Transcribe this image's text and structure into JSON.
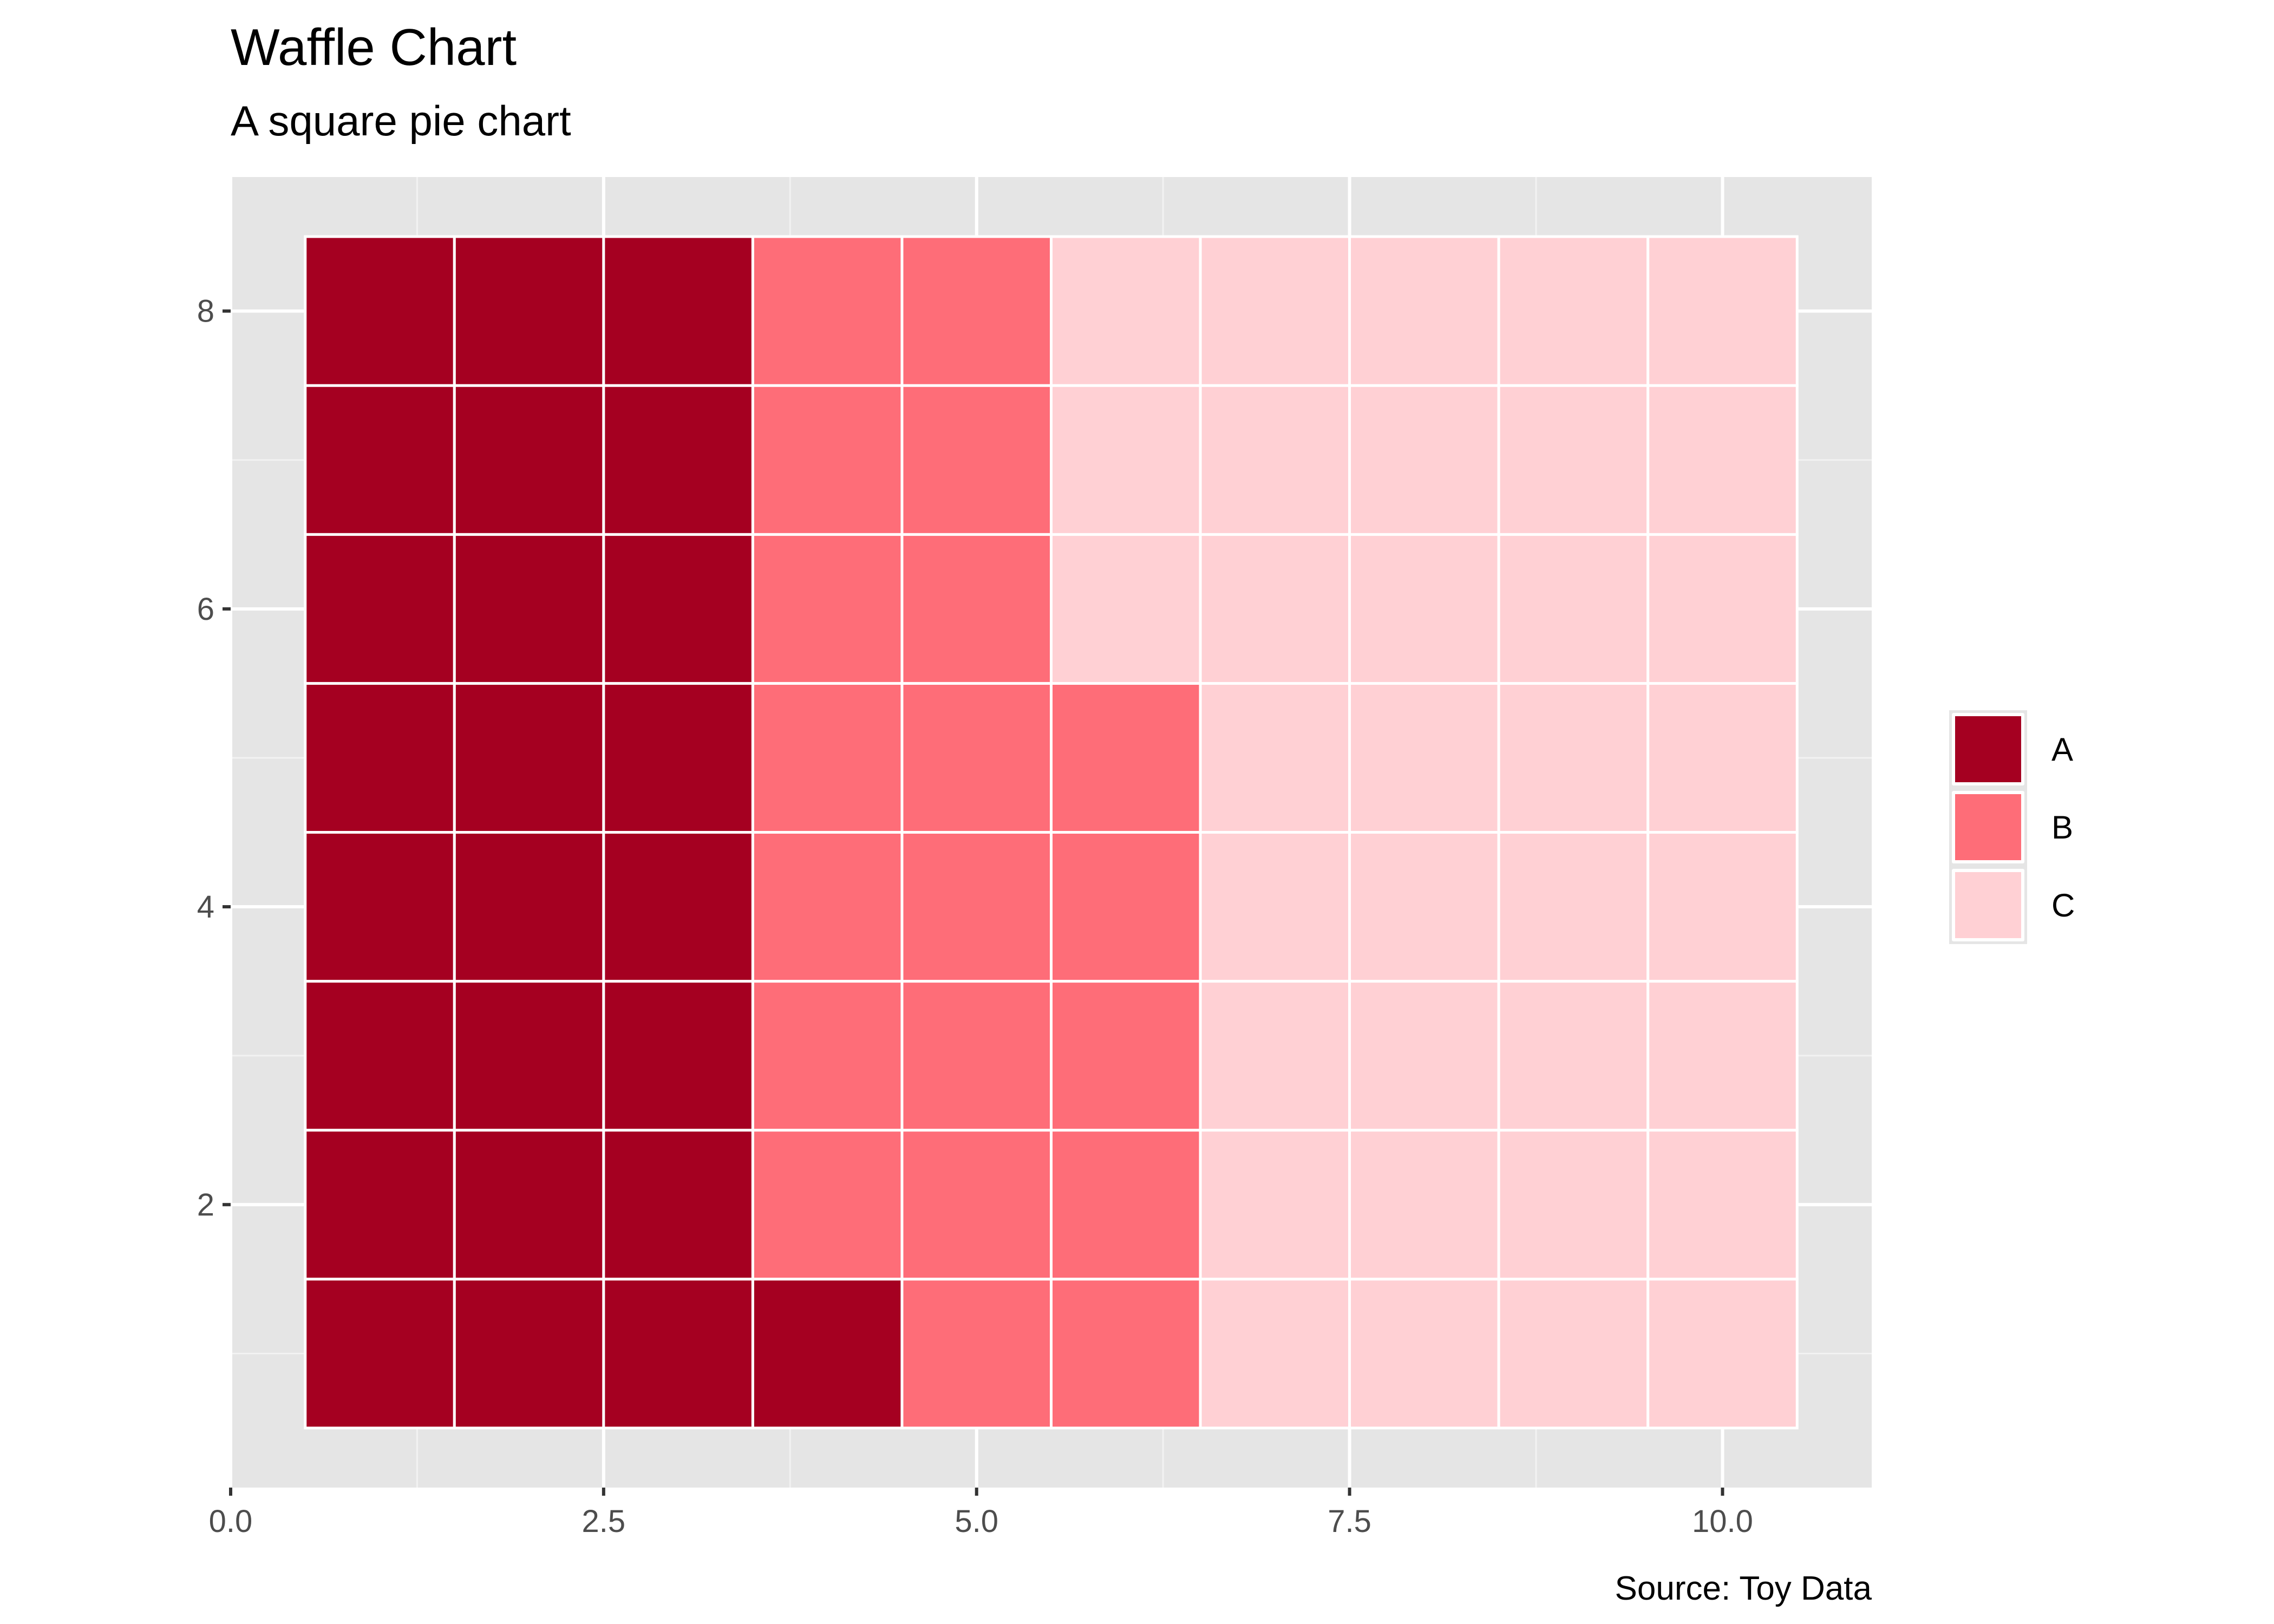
{
  "chart_data": {
    "type": "heatmap",
    "subtype": "waffle",
    "title": "Waffle Chart",
    "subtitle": "A square pie chart",
    "caption": "Source: Toy Data",
    "xlabel": "",
    "ylabel": "",
    "xlim": [
      0,
      11
    ],
    "ylim": [
      0.1,
      8.9
    ],
    "x_ticks": [
      0,
      2.5,
      5,
      7.5,
      10
    ],
    "x_tick_labels": [
      "0.0",
      "2.5",
      "5.0",
      "7.5",
      "10.0"
    ],
    "y_ticks": [
      2,
      4,
      6,
      8
    ],
    "y_tick_labels": [
      "2",
      "4",
      "6",
      "8"
    ],
    "grid": true,
    "columns": 10,
    "rows": 8,
    "fill_order": "column-wise, bottom to top",
    "categories": [
      "A",
      "B",
      "C"
    ],
    "values": [
      25,
      20,
      35
    ],
    "colors": {
      "A": "#A50021",
      "B": "#FE6D78",
      "C": "#FFD0D4"
    },
    "legend": {
      "position": "right",
      "entries": [
        "A",
        "B",
        "C"
      ]
    },
    "panel_background": "#E5E5E5"
  }
}
